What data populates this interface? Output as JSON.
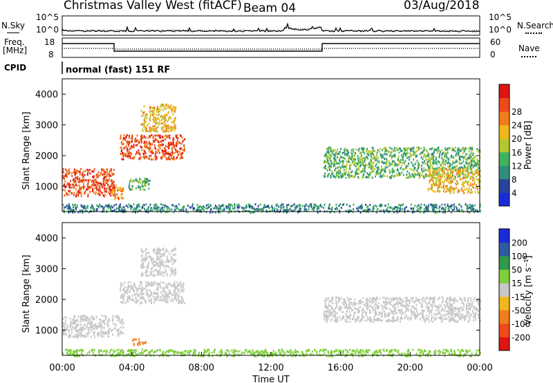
{
  "header": {
    "station": "Christmas Valley West (fitACF)",
    "beam": "Beam 04",
    "date": "03/Aug/2018"
  },
  "side_labels": {
    "nsky": "N.Sky",
    "freq_line1": "Freq.",
    "freq_line2": "[MHz]",
    "cpid": "CPID",
    "nsearch": "N.Search",
    "nave": "Nave",
    "cpid_value": "normal (fast) 151 RF"
  },
  "noise_axis": {
    "left_top": "10^5",
    "left_bottom": "10^0",
    "right_top": "10^5",
    "right_bottom": "10^0"
  },
  "freq_axis": {
    "left_top": "18",
    "left_bottom": "8",
    "right_top": "60",
    "right_bottom": "0"
  },
  "colors": {
    "power": [
      "#1a2bd8",
      "#27459e",
      "#2e8f7a",
      "#41b35c",
      "#b5c830",
      "#f2b71a",
      "#f07d1a",
      "#ee4a18",
      "#e01414"
    ],
    "velocity": [
      "#e01414",
      "#f04a18",
      "#f07d1a",
      "#f2b71a",
      "#c8c8c8",
      "#7fcf3a",
      "#2e9a4a",
      "#2e5a9e",
      "#1a2bd8"
    ]
  },
  "chart_data": [
    {
      "type": "heatmap",
      "name": "power",
      "ylabel": "Slant Range [km]",
      "colorbar_label": "Power [dB]",
      "colorbar_ticks": [
        "4",
        "8",
        "12",
        "16",
        "20",
        "24",
        "28"
      ],
      "ylim": [
        180,
        4500
      ],
      "yticks": [
        "1000",
        "2000",
        "3000",
        "4000"
      ],
      "xlim": [
        0,
        24
      ],
      "regions": [
        {
          "t0": 0.0,
          "t1": 3.0,
          "r0": 700,
          "r1": 1600,
          "level": 7
        },
        {
          "t0": 2.8,
          "t1": 3.5,
          "r0": 600,
          "r1": 1100,
          "level": 6
        },
        {
          "t0": 3.3,
          "t1": 7.0,
          "r0": 1900,
          "r1": 2700,
          "level": 7
        },
        {
          "t0": 4.5,
          "t1": 6.5,
          "r0": 2800,
          "r1": 3700,
          "level": 5
        },
        {
          "t0": 3.8,
          "t1": 5.0,
          "r0": 900,
          "r1": 1300,
          "level": 3
        },
        {
          "t0": 15.0,
          "t1": 24.0,
          "r0": 1300,
          "r1": 2300,
          "level": 3
        },
        {
          "t0": 21.0,
          "t1": 24.0,
          "r0": 800,
          "r1": 1600,
          "level": 5
        },
        {
          "t0": 0.0,
          "t1": 24.0,
          "r0": 180,
          "r1": 450,
          "level": 2
        }
      ]
    },
    {
      "type": "heatmap",
      "name": "velocity",
      "ylabel": "Slant Range [km]",
      "xlabel": "Time UT",
      "colorbar_label": "Velocity [m s⁻¹]",
      "colorbar_ticks": [
        "-200",
        "-100",
        "-50",
        "-15",
        "15",
        "50",
        "100",
        "200"
      ],
      "ylim": [
        180,
        4500
      ],
      "yticks": [
        "1000",
        "2000",
        "3000",
        "4000"
      ],
      "xlim": [
        0,
        24
      ],
      "xticks": [
        "00:00",
        "04:00",
        "08:00",
        "12:00",
        "16:00",
        "20:00",
        "00:00"
      ],
      "regions": [
        {
          "t0": 0.0,
          "t1": 3.5,
          "r0": 800,
          "r1": 1500,
          "level": 4
        },
        {
          "t0": 3.3,
          "t1": 7.0,
          "r0": 1900,
          "r1": 2600,
          "level": 4
        },
        {
          "t0": 4.5,
          "t1": 6.5,
          "r0": 2800,
          "r1": 3700,
          "level": 4
        },
        {
          "t0": 4.0,
          "t1": 4.8,
          "r0": 550,
          "r1": 750,
          "level": 2
        },
        {
          "t0": 15.0,
          "t1": 24.0,
          "r0": 1300,
          "r1": 2100,
          "level": 4
        },
        {
          "t0": 0.0,
          "t1": 24.0,
          "r0": 180,
          "r1": 400,
          "level": 5
        }
      ]
    }
  ]
}
